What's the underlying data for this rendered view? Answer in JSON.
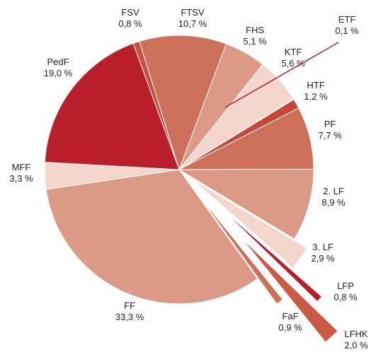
{
  "chart_data": {
    "type": "pie",
    "categories": [
      "FSV",
      "FTSV",
      "FHS",
      "KTF",
      "ETF",
      "HTF",
      "PF",
      "2. LF",
      "3. LF",
      "LFP",
      "LFHK",
      "FaF",
      "FF",
      "MFF",
      "PedF"
    ],
    "values": [
      0.8,
      10.7,
      5.1,
      5.6,
      0.1,
      1.2,
      7.7,
      8.9,
      2.9,
      0.8,
      2.0,
      0.9,
      33.3,
      3.3,
      19.0
    ],
    "value_labels": [
      "0,8 %",
      "10,7 %",
      "5,1 %",
      "5,6 %",
      "0,1 %",
      "1,2 %",
      "7,7 %",
      "8,9 %",
      "2,9 %",
      "0,8 %",
      "2,0 %",
      "0,9 %",
      "33,3 %",
      "3,3 %",
      "19,0 %"
    ],
    "colors": [
      "#c9503f",
      "#cd705a",
      "#dc9a86",
      "#f2d6cc",
      "#b81f2b",
      "#c8473a",
      "#cd705a",
      "#dc9a86",
      "#f2d6cc",
      "#b81f2b",
      "#cb5a45",
      "#cd705a",
      "#dc9a86",
      "#f2d6cc",
      "#b81f2b"
    ]
  }
}
